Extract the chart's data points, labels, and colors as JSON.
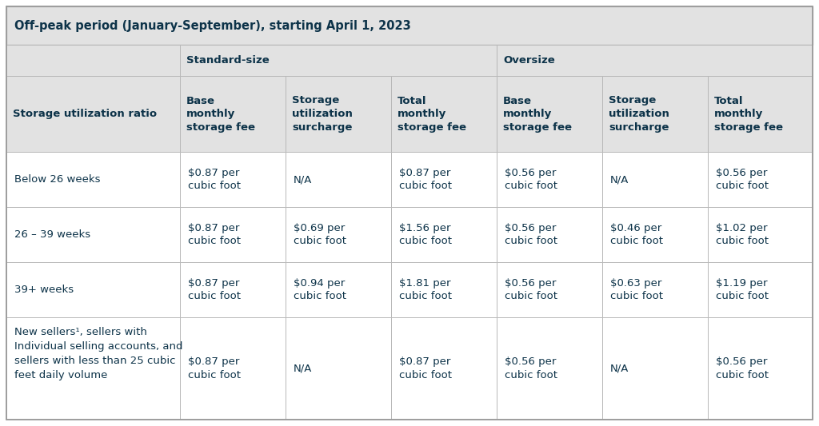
{
  "title": "Off-peak period (January-September), starting April 1, 2023",
  "title_bg": "#e2e2e2",
  "table_bg": "#ffffff",
  "header_bg": "#e2e2e2",
  "border_color": "#b8b8b8",
  "text_color": "#0d3349",
  "title_fontsize": 10.5,
  "header_fontsize": 9.5,
  "cell_fontsize": 9.5,
  "col_header": [
    "Storage utilization ratio",
    "Base\nmonthly\nstorage fee",
    "Storage\nutilization\nsurcharge",
    "Total\nmonthly\nstorage fee",
    "Base\nmonthly\nstorage fee",
    "Storage\nutilization\nsurcharge",
    "Total\nmonthly\nstorage fee"
  ],
  "rows": [
    {
      "label": "Below 26 weeks",
      "label_lines": [
        "Below 26 weeks"
      ],
      "cells": [
        "$0.87 per\ncubic foot",
        "N/A",
        "$0.87 per\ncubic foot",
        "$0.56 per\ncubic foot",
        "N/A",
        "$0.56 per\ncubic foot"
      ]
    },
    {
      "label": "26 – 39 weeks",
      "label_lines": [
        "26 – 39 weeks"
      ],
      "cells": [
        "$0.87 per\ncubic foot",
        "$0.69 per\ncubic foot",
        "$1.56 per\ncubic foot",
        "$0.56 per\ncubic foot",
        "$0.46 per\ncubic foot",
        "$1.02 per\ncubic foot"
      ]
    },
    {
      "label": "39+ weeks",
      "label_lines": [
        "39+ weeks"
      ],
      "cells": [
        "$0.87 per\ncubic foot",
        "$0.94 per\ncubic foot",
        "$1.81 per\ncubic foot",
        "$0.56 per\ncubic foot",
        "$0.63 per\ncubic foot",
        "$1.19 per\ncubic foot"
      ]
    },
    {
      "label": "New sellers¹, sellers with\nIndividual selling accounts, and\nsellers with less than 25 cubic\nfeet daily volume",
      "label_lines": [
        "New sellers¹, sellers with",
        "Individual selling accounts, and",
        "sellers with less than 25 cubic",
        "feet daily volume"
      ],
      "cells": [
        "$0.87 per\ncubic foot",
        "N/A",
        "$0.87 per\ncubic foot",
        "$0.56 per\ncubic foot",
        "N/A",
        "$0.56 per\ncubic foot"
      ]
    }
  ],
  "figsize": [
    10.24,
    5.33
  ],
  "dpi": 100
}
